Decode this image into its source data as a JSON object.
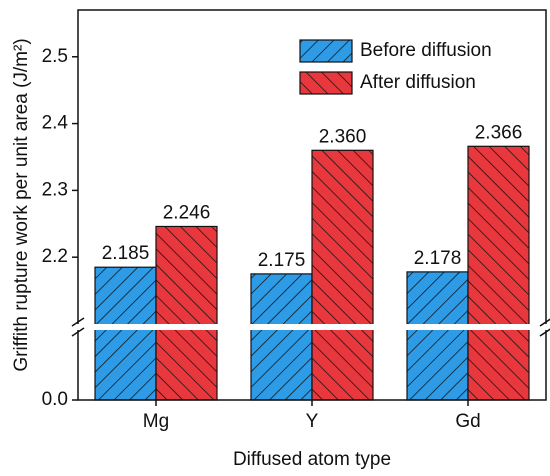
{
  "chart_data": {
    "type": "bar",
    "y_label": "Griffith rupture work per unit area (J/m²)",
    "x_label": "Diffused atom type",
    "categories": [
      "Mg",
      "Y",
      "Gd"
    ],
    "series": [
      {
        "name": "Before diffusion",
        "color": "#2e9be6",
        "hatch": "/",
        "values": [
          2.185,
          2.175,
          2.178
        ],
        "value_labels": [
          "2.185",
          "2.175",
          "2.178"
        ]
      },
      {
        "name": "After diffusion",
        "color": "#e8383d",
        "hatch": "\\",
        "values": [
          2.246,
          2.36,
          2.366
        ],
        "value_labels": [
          "2.246",
          "2.360",
          "2.366"
        ]
      }
    ],
    "ylim": [
      0,
      2.57
    ],
    "ybreak": [
      0.2,
      2.1
    ],
    "yticks": [
      {
        "value": 0,
        "label": "0.0"
      },
      2.2,
      2.3,
      2.4,
      2.5
    ],
    "legend": "upper right"
  }
}
